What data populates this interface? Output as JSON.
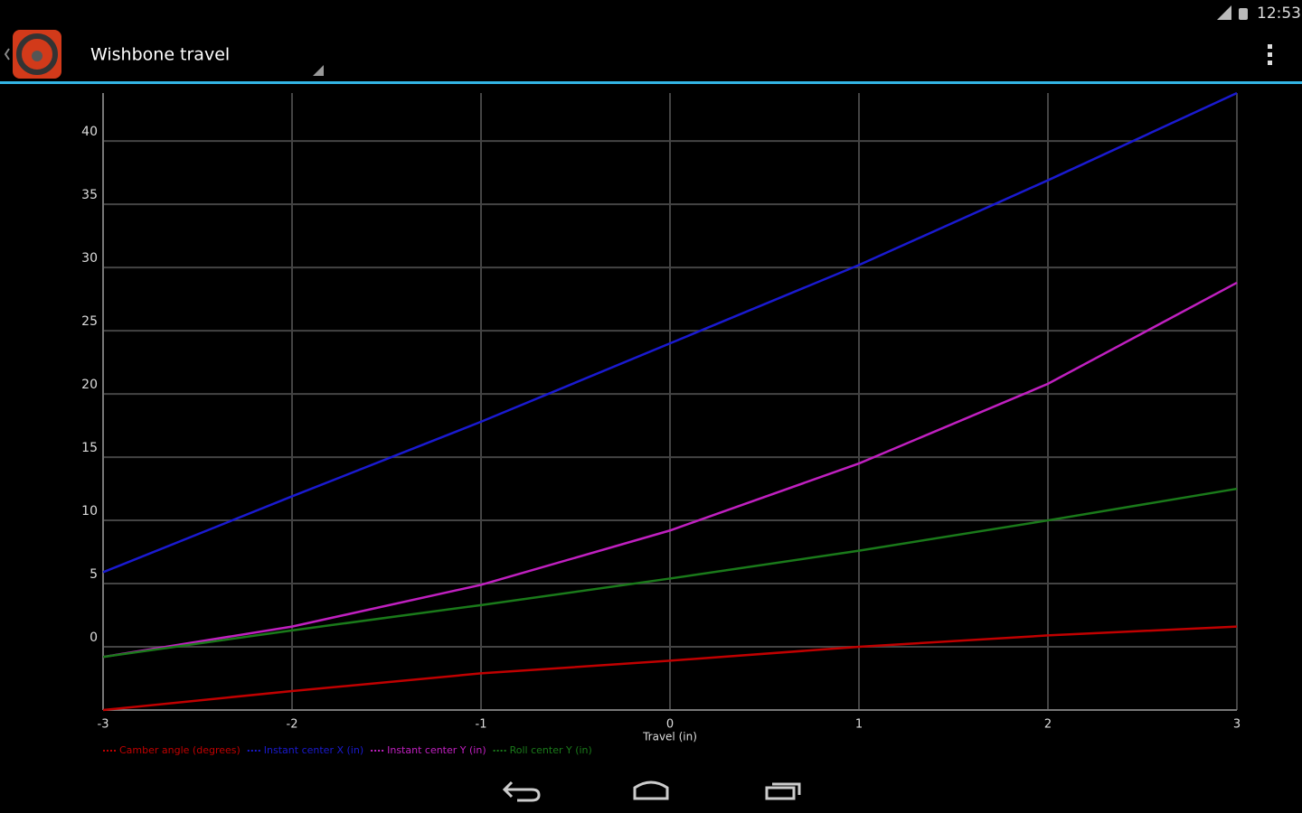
{
  "status_bar": {
    "time": "12:53"
  },
  "action_bar": {
    "title": "Wishbone travel"
  },
  "chart_data": {
    "type": "line",
    "x_label": "Travel (in)",
    "x": [
      -3,
      -2,
      -1,
      0,
      1,
      2,
      3
    ],
    "series": [
      {
        "name": "Camber angle (degrees)",
        "color": "#c00000",
        "values": [
          -5.0,
          -3.5,
          -2.1,
          -1.1,
          0.0,
          0.9,
          1.6
        ]
      },
      {
        "name": "Instant center X (in)",
        "color": "#1a1ad0",
        "values": [
          5.9,
          11.9,
          17.8,
          24.0,
          30.2,
          36.9,
          43.8
        ]
      },
      {
        "name": "Instant center Y (in)",
        "color": "#c020c0",
        "values": [
          -0.8,
          1.6,
          4.9,
          9.2,
          14.5,
          20.8,
          28.8
        ]
      },
      {
        "name": "Roll center Y (in)",
        "color": "#1a7a1a",
        "values": [
          -0.8,
          1.3,
          3.3,
          5.4,
          7.6,
          10.0,
          12.5
        ]
      }
    ],
    "xlim": [
      -3,
      3
    ],
    "xticks": [
      -3,
      -2,
      -1,
      0,
      1,
      2,
      3
    ],
    "ylim": [
      -5,
      43.8
    ],
    "yticks": [
      0,
      5,
      10,
      15,
      20,
      25,
      30,
      35,
      40
    ],
    "grid": true,
    "legend": "bottom-left"
  }
}
